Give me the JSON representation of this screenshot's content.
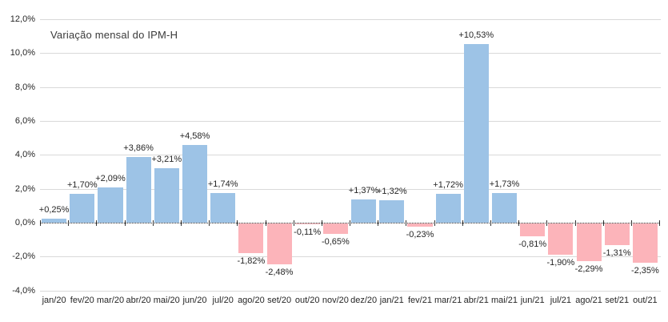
{
  "chart_data": {
    "type": "bar",
    "title": "Variação mensal  do IPM-H",
    "categories": [
      "jan/20",
      "fev/20",
      "mar/20",
      "abr/20",
      "mai/20",
      "jun/20",
      "jul/20",
      "ago/20",
      "set/20",
      "out/20",
      "nov/20",
      "dez/20",
      "jan/21",
      "fev/21",
      "mar/21",
      "abr/21",
      "mai/21",
      "jun/21",
      "jul/21",
      "ago/21",
      "set/21",
      "out/21"
    ],
    "values": [
      0.25,
      1.7,
      2.09,
      3.86,
      3.21,
      4.58,
      1.74,
      -1.82,
      -2.48,
      -0.11,
      -0.65,
      1.37,
      1.32,
      -0.23,
      1.72,
      10.53,
      1.73,
      -0.81,
      -1.9,
      -2.29,
      -1.31,
      -2.35
    ],
    "data_labels": [
      "+0,25%",
      "+1,70%",
      "+2,09%",
      "+3,86%",
      "+3,21%",
      "+4,58%",
      "+1,74%",
      "-1,82%",
      "-2,48%",
      "-0,11%",
      "-0,65%",
      "+1,37%",
      "+1,32%",
      "-0,23%",
      "+1,72%",
      "+10,53%",
      "+1,73%",
      "-0,81%",
      "-1,90%",
      "-2,29%",
      "-1,31%",
      "-2,35%"
    ],
    "xlabel": "",
    "ylabel": "",
    "ylim": [
      -4,
      12
    ],
    "y_ticks": [
      {
        "value": 12,
        "label": "12,0%"
      },
      {
        "value": 10,
        "label": "10,0%"
      },
      {
        "value": 8,
        "label": "8,0%"
      },
      {
        "value": 6,
        "label": "6,0%"
      },
      {
        "value": 4,
        "label": "4,0%"
      },
      {
        "value": 2,
        "label": "2,0%"
      },
      {
        "value": 0,
        "label": "0,0%"
      },
      {
        "value": -2,
        "label": "-2,0%"
      },
      {
        "value": -4,
        "label": "-4,0%"
      }
    ],
    "grid": true,
    "legend": false,
    "colors": {
      "positive_bar": "#9DC3E6",
      "negative_bar": "#FCB4BA",
      "gridline": "#D9D9D9",
      "zero_axis": "#333333",
      "text": "#262626"
    }
  }
}
